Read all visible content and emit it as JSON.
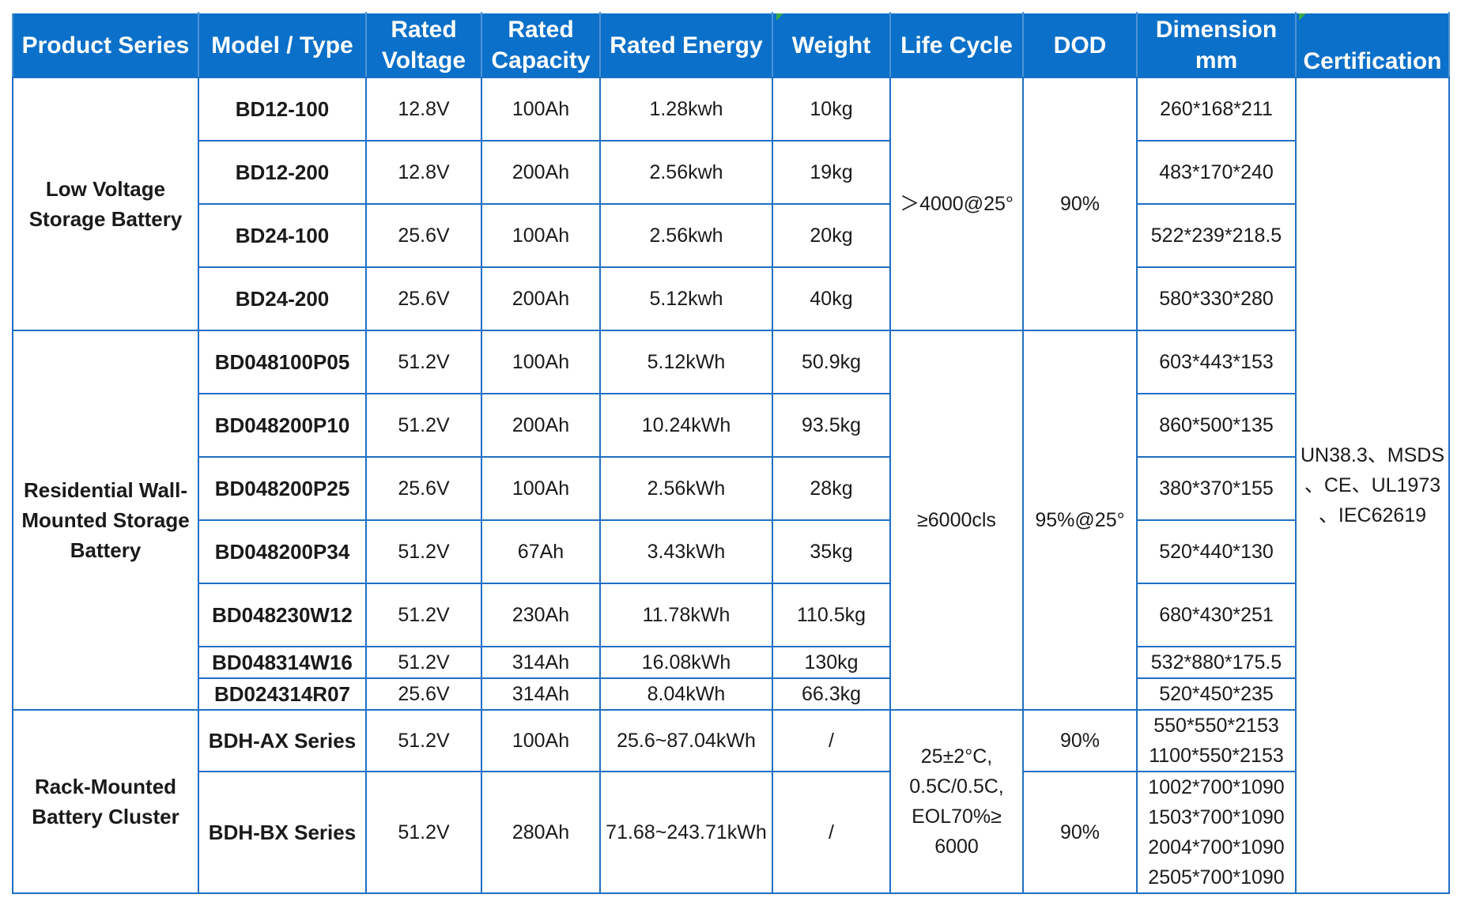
{
  "headers": [
    "Product Series",
    "Model / Type",
    "Rated\nVoltage",
    "Rated\nCapacity",
    "Rated Energy",
    "Weight",
    "Life Cycle",
    "DOD",
    "Dimension\nmm",
    "Certification"
  ],
  "series": {
    "low_voltage": "Low Voltage\nStorage Battery",
    "residential": "Residential Wall-\nMounted Storage\nBattery",
    "rack": "Rack-Mounted\nBattery Cluster"
  },
  "rows": [
    {
      "model": "BD12-100",
      "voltage": "12.8V",
      "capacity": "100Ah",
      "energy": "1.28kwh",
      "weight": "10kg",
      "dimension": "260*168*211"
    },
    {
      "model": "BD12-200",
      "voltage": "12.8V",
      "capacity": "200Ah",
      "energy": "2.56kwh",
      "weight": "19kg",
      "dimension": "483*170*240"
    },
    {
      "model": "BD24-100",
      "voltage": "25.6V",
      "capacity": "100Ah",
      "energy": "2.56kwh",
      "weight": "20kg",
      "dimension": "522*239*218.5"
    },
    {
      "model": "BD24-200",
      "voltage": "25.6V",
      "capacity": "200Ah",
      "energy": "5.12kwh",
      "weight": "40kg",
      "dimension": "580*330*280"
    },
    {
      "model": "BD048100P05",
      "voltage": "51.2V",
      "capacity": "100Ah",
      "energy": "5.12kWh",
      "weight": "50.9kg",
      "dimension": "603*443*153"
    },
    {
      "model": "BD048200P10",
      "voltage": "51.2V",
      "capacity": "200Ah",
      "energy": "10.24kWh",
      "weight": "93.5kg",
      "dimension": "860*500*135"
    },
    {
      "model": "BD048200P25",
      "voltage": "25.6V",
      "capacity": "100Ah",
      "energy": "2.56kWh",
      "weight": "28kg",
      "dimension": "380*370*155"
    },
    {
      "model": "BD048200P34",
      "voltage": "51.2V",
      "capacity": "67Ah",
      "energy": "3.43kWh",
      "weight": "35kg",
      "dimension": "520*440*130"
    },
    {
      "model": "BD048230W12",
      "voltage": "51.2V",
      "capacity": "230Ah",
      "energy": "11.78kWh",
      "weight": "110.5kg",
      "dimension": "680*430*251"
    },
    {
      "model": "BD048314W16",
      "voltage": "51.2V",
      "capacity": "314Ah",
      "energy": "16.08kWh",
      "weight": "130kg",
      "dimension": "532*880*175.5"
    },
    {
      "model": "BD024314R07",
      "voltage": "25.6V",
      "capacity": "314Ah",
      "energy": "8.04kWh",
      "weight": "66.3kg",
      "dimension": "520*450*235"
    },
    {
      "model": "BDH-AX Series",
      "voltage": "51.2V",
      "capacity": "100Ah",
      "energy": "25.6~87.04kWh",
      "weight": "/",
      "dimension": "550*550*2153\n1100*550*2153"
    },
    {
      "model": "BDH-BX Series",
      "voltage": "51.2V",
      "capacity": "280Ah",
      "energy": "71.68~243.71kWh",
      "weight": "/",
      "dimension": "1002*700*1090\n1503*700*1090\n2004*700*1090\n2505*700*1090"
    }
  ],
  "life_cycle": {
    "low_voltage": "＞4000@25°",
    "residential": "≥6000cls",
    "rack": "25±2°C,\n0.5C/0.5C,\nEOL70%≥\n6000"
  },
  "dod": {
    "low_voltage": "90%",
    "residential": "95%@25°",
    "rack_ax": "90%",
    "rack_bx": "90%"
  },
  "certification": "UN38.3、MSDS\n、CE、UL1973\n、IEC62619",
  "colors": {
    "header_bg": "#0b70c9",
    "header_text": "#ffffff",
    "border": "#1f6fc4",
    "body_text": "#1a1a1a"
  }
}
